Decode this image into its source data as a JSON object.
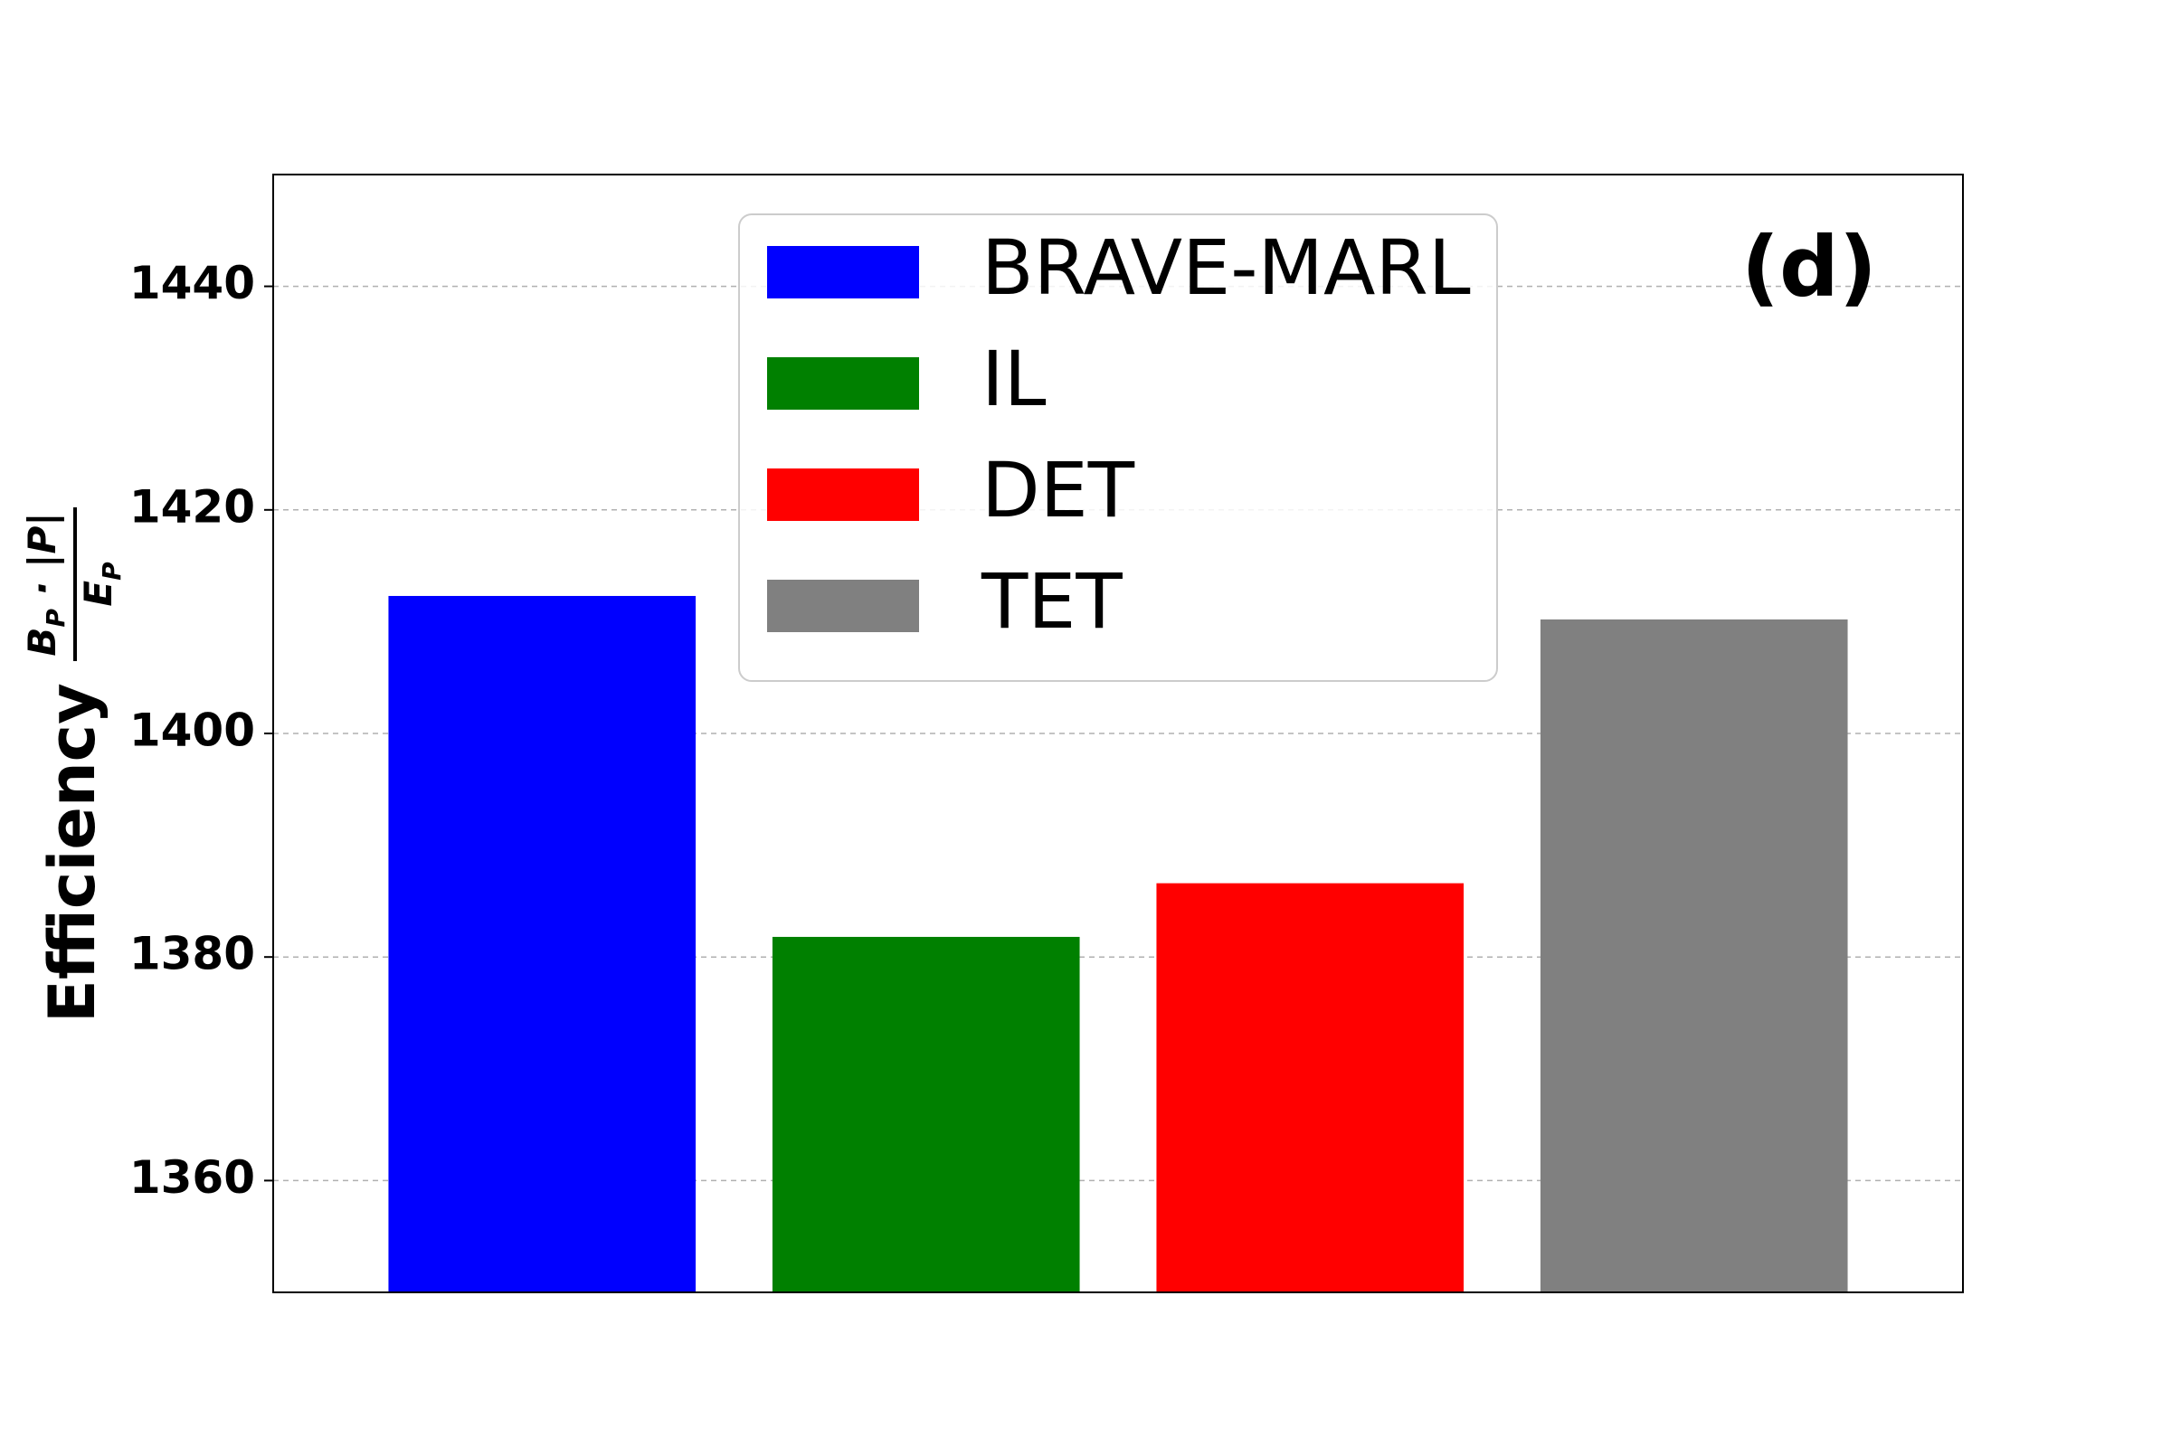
{
  "chart_data": {
    "type": "bar",
    "categories": [
      "BRAVE-MARL",
      "IL",
      "DET",
      "TET"
    ],
    "values": [
      1412.3,
      1381.8,
      1386.6,
      1410.2
    ],
    "colors": [
      "#0000ff",
      "#008000",
      "#ff0000",
      "#808080"
    ],
    "title": "",
    "xlabel": "",
    "ylabel": "Efficiency",
    "ylabel_formula": {
      "numerator": "B_P · |P|",
      "denominator": "E_P"
    },
    "ylim": [
      1350,
      1450
    ],
    "yticks": [
      1360,
      1380,
      1400,
      1420,
      1440
    ],
    "grid": "horizontal dashed",
    "legend_placement": "top-center",
    "panel_label": "(d)"
  }
}
